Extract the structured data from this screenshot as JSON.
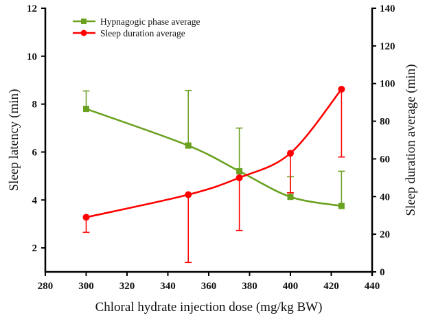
{
  "chart_data": {
    "type": "line",
    "title": "",
    "xlabel": "Chloral hydrate injection dose (mg/kg BW)",
    "ylabel": "Sleep latency (min)",
    "y2label": "Sleep duration average (min)",
    "xlim": [
      280,
      440
    ],
    "ylim": [
      1,
      12
    ],
    "y2lim": [
      0,
      140
    ],
    "x_ticks": [
      280,
      300,
      320,
      340,
      360,
      380,
      400,
      420,
      440
    ],
    "y_ticks": [
      2,
      4,
      6,
      8,
      10,
      12
    ],
    "y2_ticks": [
      0,
      20,
      40,
      60,
      80,
      100,
      120,
      140
    ],
    "grid": false,
    "legend_position": "top-left",
    "x": [
      300,
      350,
      375,
      400,
      425
    ],
    "series": [
      {
        "name": "Hypnagogic phase average",
        "axis": "left",
        "color": "#6aa121",
        "marker": "square",
        "values": [
          7.8,
          6.27,
          5.2,
          4.13,
          3.75
        ],
        "error_upper": [
          8.55,
          8.57,
          7.0,
          4.97,
          5.2
        ]
      },
      {
        "name": "Sleep duration average",
        "axis": "right",
        "color": "#ff0000",
        "marker": "circle",
        "values": [
          29,
          41,
          50,
          63,
          97
        ],
        "error_lower": [
          21,
          5,
          22,
          42,
          61
        ]
      }
    ]
  }
}
